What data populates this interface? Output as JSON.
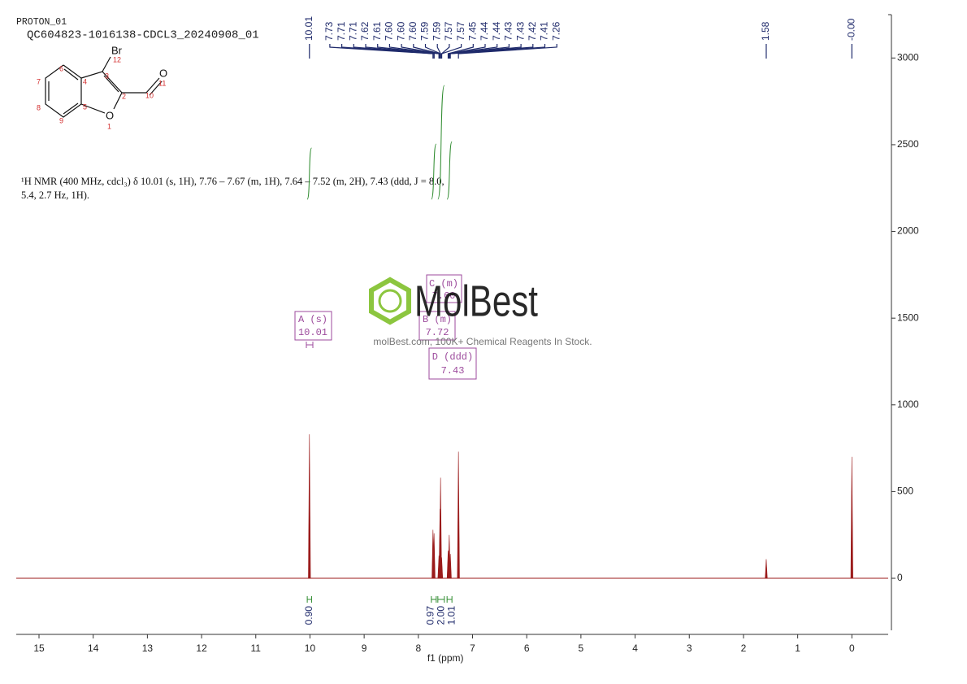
{
  "header": {
    "experiment": "PROTON_01",
    "sample": "QC604823-1016138-CDCL3_20240908_01"
  },
  "structure": {
    "labels": [
      "Br",
      "12",
      "3",
      "O",
      "11",
      "10",
      "2",
      "6",
      "4",
      "7",
      "8",
      "5",
      "9",
      "O",
      "1"
    ]
  },
  "description": [
    "¹H NMR (400 MHz, cdcl₃) δ 10.01 (s, 1H), 7.76 – 7.67 (m, 1H), 7.64 – 7.52 (m, 2H), 7.43 (ddd, J = 8.0,",
    "5.4, 2.7 Hz, 1H)."
  ],
  "watermark": {
    "brand": "MolBest",
    "tagline": "molBest.com, 100K+ Chemical Reagents In Stock."
  },
  "chart_data": {
    "type": "nmr",
    "x_label": "f1 (ppm)",
    "xlim": [
      15.42,
      -0.67
    ],
    "xticks": [
      15,
      14,
      13,
      12,
      11,
      10,
      9,
      8,
      7,
      6,
      5,
      4,
      3,
      2,
      1,
      0
    ],
    "ylim": [
      -300,
      3250
    ],
    "yticks": [
      0,
      500,
      1000,
      1500,
      2000,
      2500,
      3000
    ],
    "peaks": {
      "color": "#9b1b1b",
      "x": [
        10.01,
        7.73,
        7.71,
        7.62,
        7.6,
        7.59,
        7.57,
        7.45,
        7.43,
        7.41,
        7.26,
        1.58,
        0
      ],
      "values": [
        830,
        280,
        260,
        130,
        400,
        580,
        120,
        160,
        250,
        140,
        730,
        110,
        700
      ]
    },
    "peak_picks": {
      "color": "#1f2a6b",
      "values": [
        10.01,
        7.73,
        7.71,
        7.71,
        7.62,
        7.61,
        7.6,
        7.6,
        7.6,
        7.59,
        7.59,
        7.57,
        7.57,
        7.45,
        7.44,
        7.44,
        7.43,
        7.43,
        7.42,
        7.41,
        7.26,
        1.58,
        0
      ],
      "value_labels": [
        "10.01",
        "7.73",
        "7.71",
        "7.71",
        "7.62",
        "7.61",
        "7.60",
        "7.60",
        "7.60",
        "7.59",
        "7.59",
        "7.57",
        "7.57",
        "7.45",
        "7.44",
        "7.44",
        "7.43",
        "7.43",
        "7.42",
        "7.41",
        "7.26",
        "1.58",
        "-0.00"
      ]
    },
    "integrals": {
      "color": "#2e8b2e",
      "ranges": [
        [
          10.05,
          9.97
        ],
        [
          7.76,
          7.67
        ],
        [
          7.64,
          7.52
        ],
        [
          7.47,
          7.38
        ]
      ],
      "values": [
        0.9,
        0.97,
        2,
        1.01
      ],
      "value_labels": [
        "0.90",
        "0.97",
        "2.00",
        "1.01"
      ]
    },
    "multiplets": [
      {
        "name": "A (s)",
        "shift": "10.01"
      },
      {
        "name": "B (m)",
        "shift": "7.72"
      },
      {
        "name": "C (m)",
        "shift": "7.60"
      },
      {
        "name": "D (ddd)",
        "shift": "7.43"
      }
    ]
  }
}
